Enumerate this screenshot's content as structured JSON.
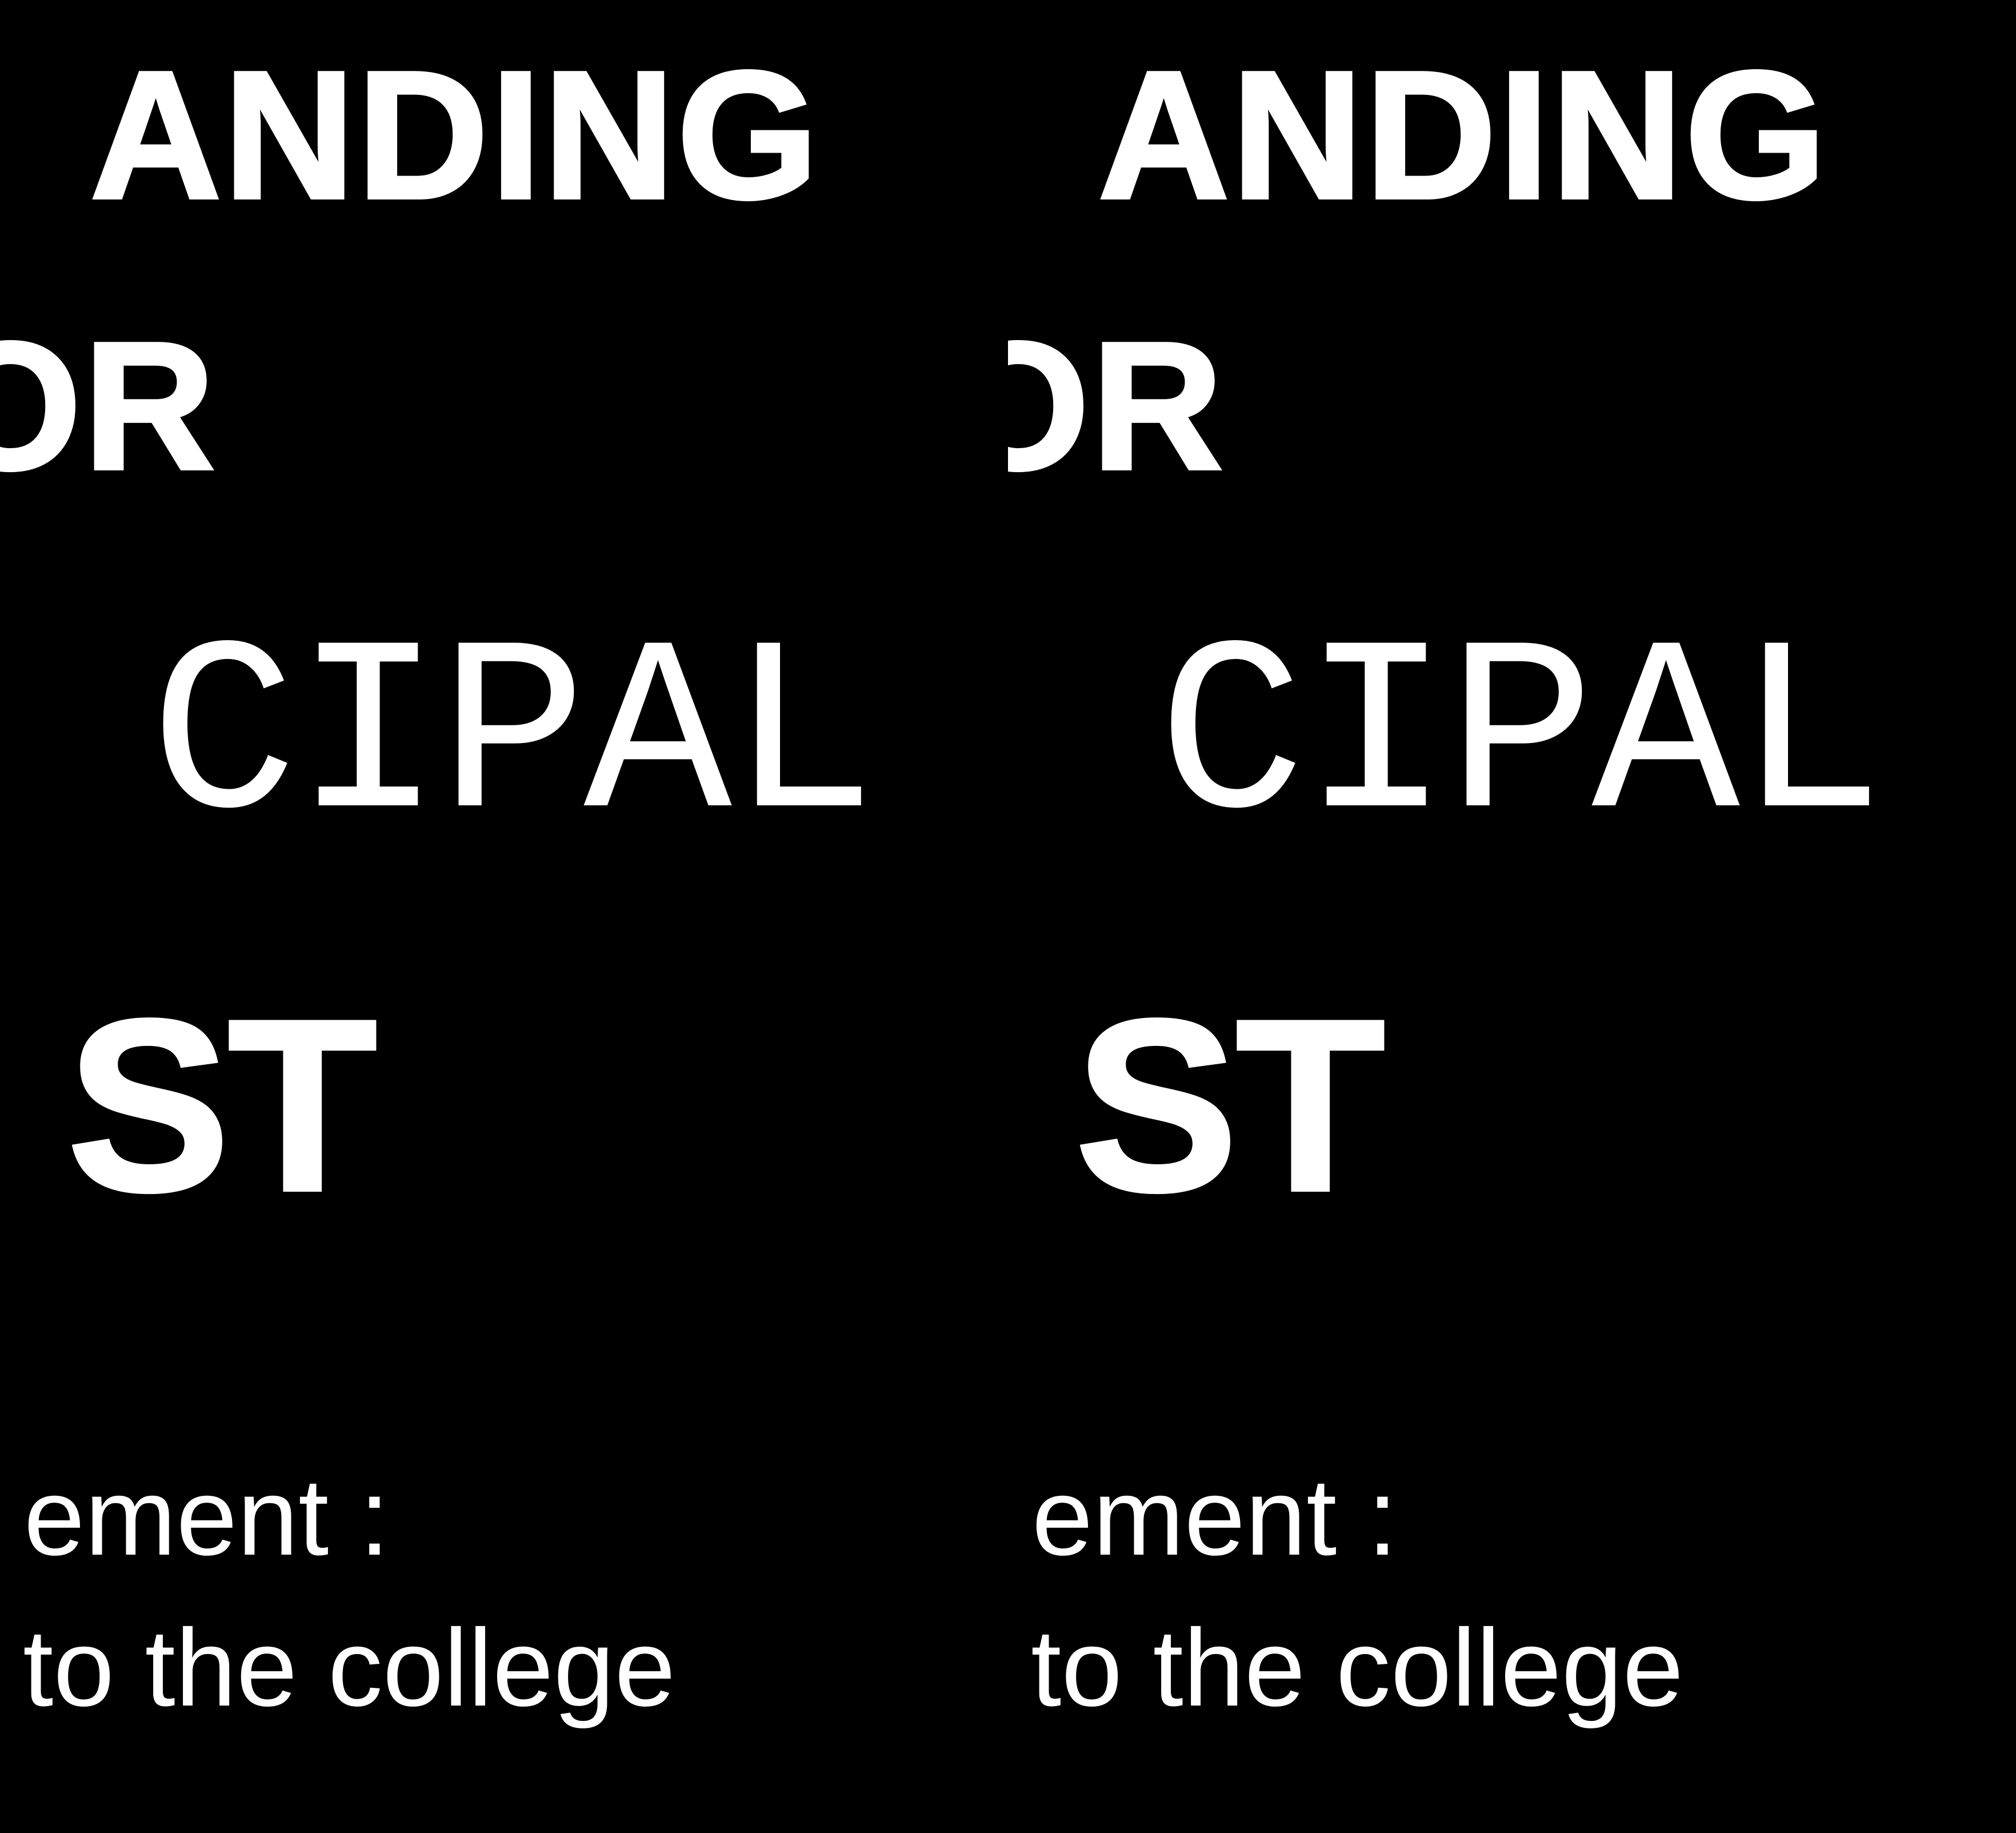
{
  "poster": {
    "line1": "ANDING",
    "line2": "OR",
    "line3": "CIPAL",
    "line4": "ST",
    "line5": "ement :",
    "line6": "to the college"
  },
  "colors": {
    "background": "#000000",
    "text": "#ffffff"
  }
}
